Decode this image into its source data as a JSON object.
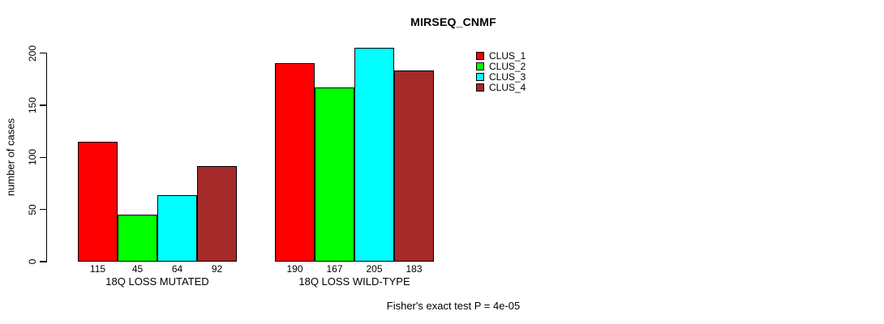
{
  "figure": {
    "background": "#ffffff",
    "text_color": "#000000"
  },
  "chart_data": {
    "type": "bar",
    "title": "MIRSEQ_CNMF",
    "xlabel": "",
    "ylabel": "number of cases",
    "categories": [
      "18Q LOSS MUTATED",
      "18Q LOSS WILD-TYPE"
    ],
    "series": [
      {
        "name": "CLUS_1",
        "color": "#ff0000",
        "values": [
          115,
          190
        ]
      },
      {
        "name": "CLUS_2",
        "color": "#00ff00",
        "values": [
          45,
          167
        ]
      },
      {
        "name": "CLUS_3",
        "color": "#00ffff",
        "values": [
          64,
          205
        ]
      },
      {
        "name": "CLUS_4",
        "color": "#a52a2a",
        "values": [
          92,
          183
        ]
      }
    ],
    "ylim": [
      0,
      205
    ],
    "yticks": [
      0,
      50,
      100,
      150,
      200
    ],
    "grid": false,
    "legend_position": "top-right",
    "value_labels_visible": true,
    "annotation": "Fisher's exact test P = 4e-05"
  }
}
